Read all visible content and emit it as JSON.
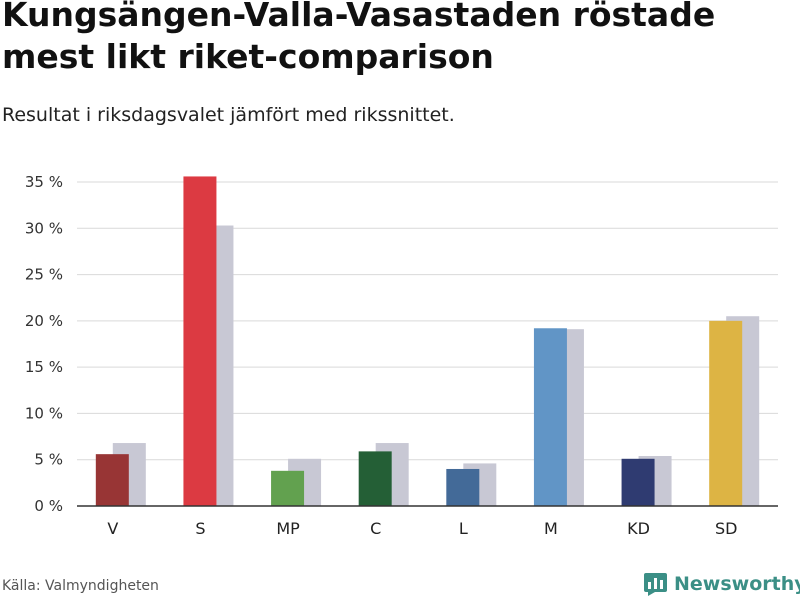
{
  "title": "Kungsängen-Valla-Vasastaden röstade mest likt riket-comparison",
  "subtitle": "Resultat i riksdagsvalet jämfört med rikssnittet.",
  "source": "Källa: Valmyndigheten",
  "brand": "Newsworthy",
  "colors": {
    "comparison": "#c8c8d4",
    "grid": "#d9d9d9",
    "axis": "#333333",
    "brand": "#3b8f86"
  },
  "chart_data": {
    "type": "bar",
    "title": "Kungsängen-Valla-Vasastaden röstade mest likt riket-comparison",
    "subtitle": "Resultat i riksdagsvalet jämfört med rikssnittet.",
    "categories": [
      "V",
      "S",
      "MP",
      "C",
      "L",
      "M",
      "KD",
      "SD"
    ],
    "series": [
      {
        "values": [
          5.6,
          35.6,
          3.8,
          5.9,
          4.0,
          19.2,
          5.1,
          20.0
        ],
        "colors": [
          "#983535",
          "#dc3a42",
          "#62a14f",
          "#245f36",
          "#436a98",
          "#6195c6",
          "#2f3b71",
          "#ddb444"
        ]
      },
      {
        "values": [
          6.8,
          30.3,
          5.1,
          6.8,
          4.6,
          19.1,
          5.4,
          20.5
        ],
        "color": "#c8c8d4"
      }
    ],
    "ylim": [
      0,
      35
    ],
    "yticks": [
      0,
      5,
      10,
      15,
      20,
      25,
      30,
      35
    ],
    "ytick_labels": [
      "0 %",
      "5 %",
      "10 %",
      "15 %",
      "20 %",
      "25 %",
      "30 %",
      "35 %"
    ],
    "xlabel": "",
    "ylabel": "",
    "grid": true,
    "legend": "none"
  }
}
